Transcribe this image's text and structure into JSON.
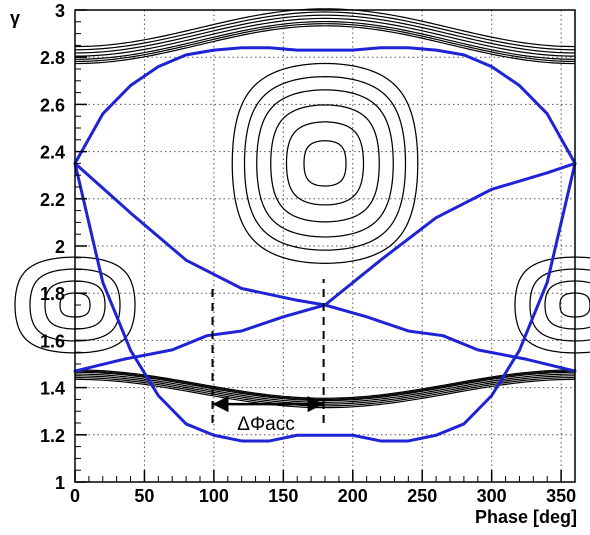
{
  "chart_data": {
    "type": "line",
    "title": "",
    "xlabel": "Phase [deg]",
    "ylabel": "γ",
    "xlim": [
      0,
      360
    ],
    "ylim": [
      1,
      3
    ],
    "grid": true,
    "x_ticks": [
      0,
      50,
      100,
      150,
      200,
      250,
      300,
      350
    ],
    "y_ticks": [
      1,
      1.2,
      1.4,
      1.6,
      1.8,
      2,
      2.2,
      2.4,
      2.6,
      2.8,
      3
    ],
    "x_tick_labels": [
      "0",
      "50",
      "100",
      "150",
      "200",
      "250",
      "300",
      "350"
    ],
    "y_tick_labels": [
      "1",
      "1.2",
      "1.4",
      "1.6",
      "1.8",
      "2",
      "2.2",
      "2.4",
      "2.6",
      "2.8",
      "3"
    ],
    "colors": {
      "orbit": "#000000",
      "separatrix": "#1f23d6",
      "grid": "#555555"
    },
    "curve_families": {
      "stable_phase": 180,
      "unstable_phase": 0,
      "center_gamma": 2.35,
      "lower_center_gamma": 1.75,
      "upper_bucket_contours": [
        0.12,
        0.22,
        0.31,
        0.39,
        0.46,
        0.53
      ],
      "lower_bucket_contours": [
        0.06,
        0.12,
        0.18,
        0.24
      ],
      "outer_orbit_contours": [
        0.54,
        0.56,
        0.58,
        0.61,
        0.64,
        0.67,
        0.7
      ]
    },
    "separatrix": {
      "name": "",
      "points": [
        [
          0,
          2.35
        ],
        [
          20,
          2.56
        ],
        [
          40,
          2.68
        ],
        [
          60,
          2.76
        ],
        [
          80,
          2.81
        ],
        [
          100,
          2.83
        ],
        [
          120,
          2.84
        ],
        [
          140,
          2.84
        ],
        [
          160,
          2.83
        ],
        [
          180,
          2.83
        ],
        [
          200,
          2.83
        ],
        [
          220,
          2.84
        ],
        [
          240,
          2.84
        ],
        [
          260,
          2.83
        ],
        [
          280,
          2.81
        ],
        [
          300,
          2.76
        ],
        [
          320,
          2.68
        ],
        [
          340,
          2.56
        ],
        [
          360,
          2.35
        ]
      ]
    },
    "annotations": [
      {
        "text": "ΔΦacc",
        "x": 140,
        "y": 1.25,
        "arrow_from": 99,
        "arrow_to": 179,
        "arrow_y": 1.33
      }
    ],
    "markers": [
      {
        "x": 99,
        "y1": 1.25,
        "y2": 1.84
      },
      {
        "x": 179,
        "y1": 1.25,
        "y2": 1.86
      }
    ]
  }
}
